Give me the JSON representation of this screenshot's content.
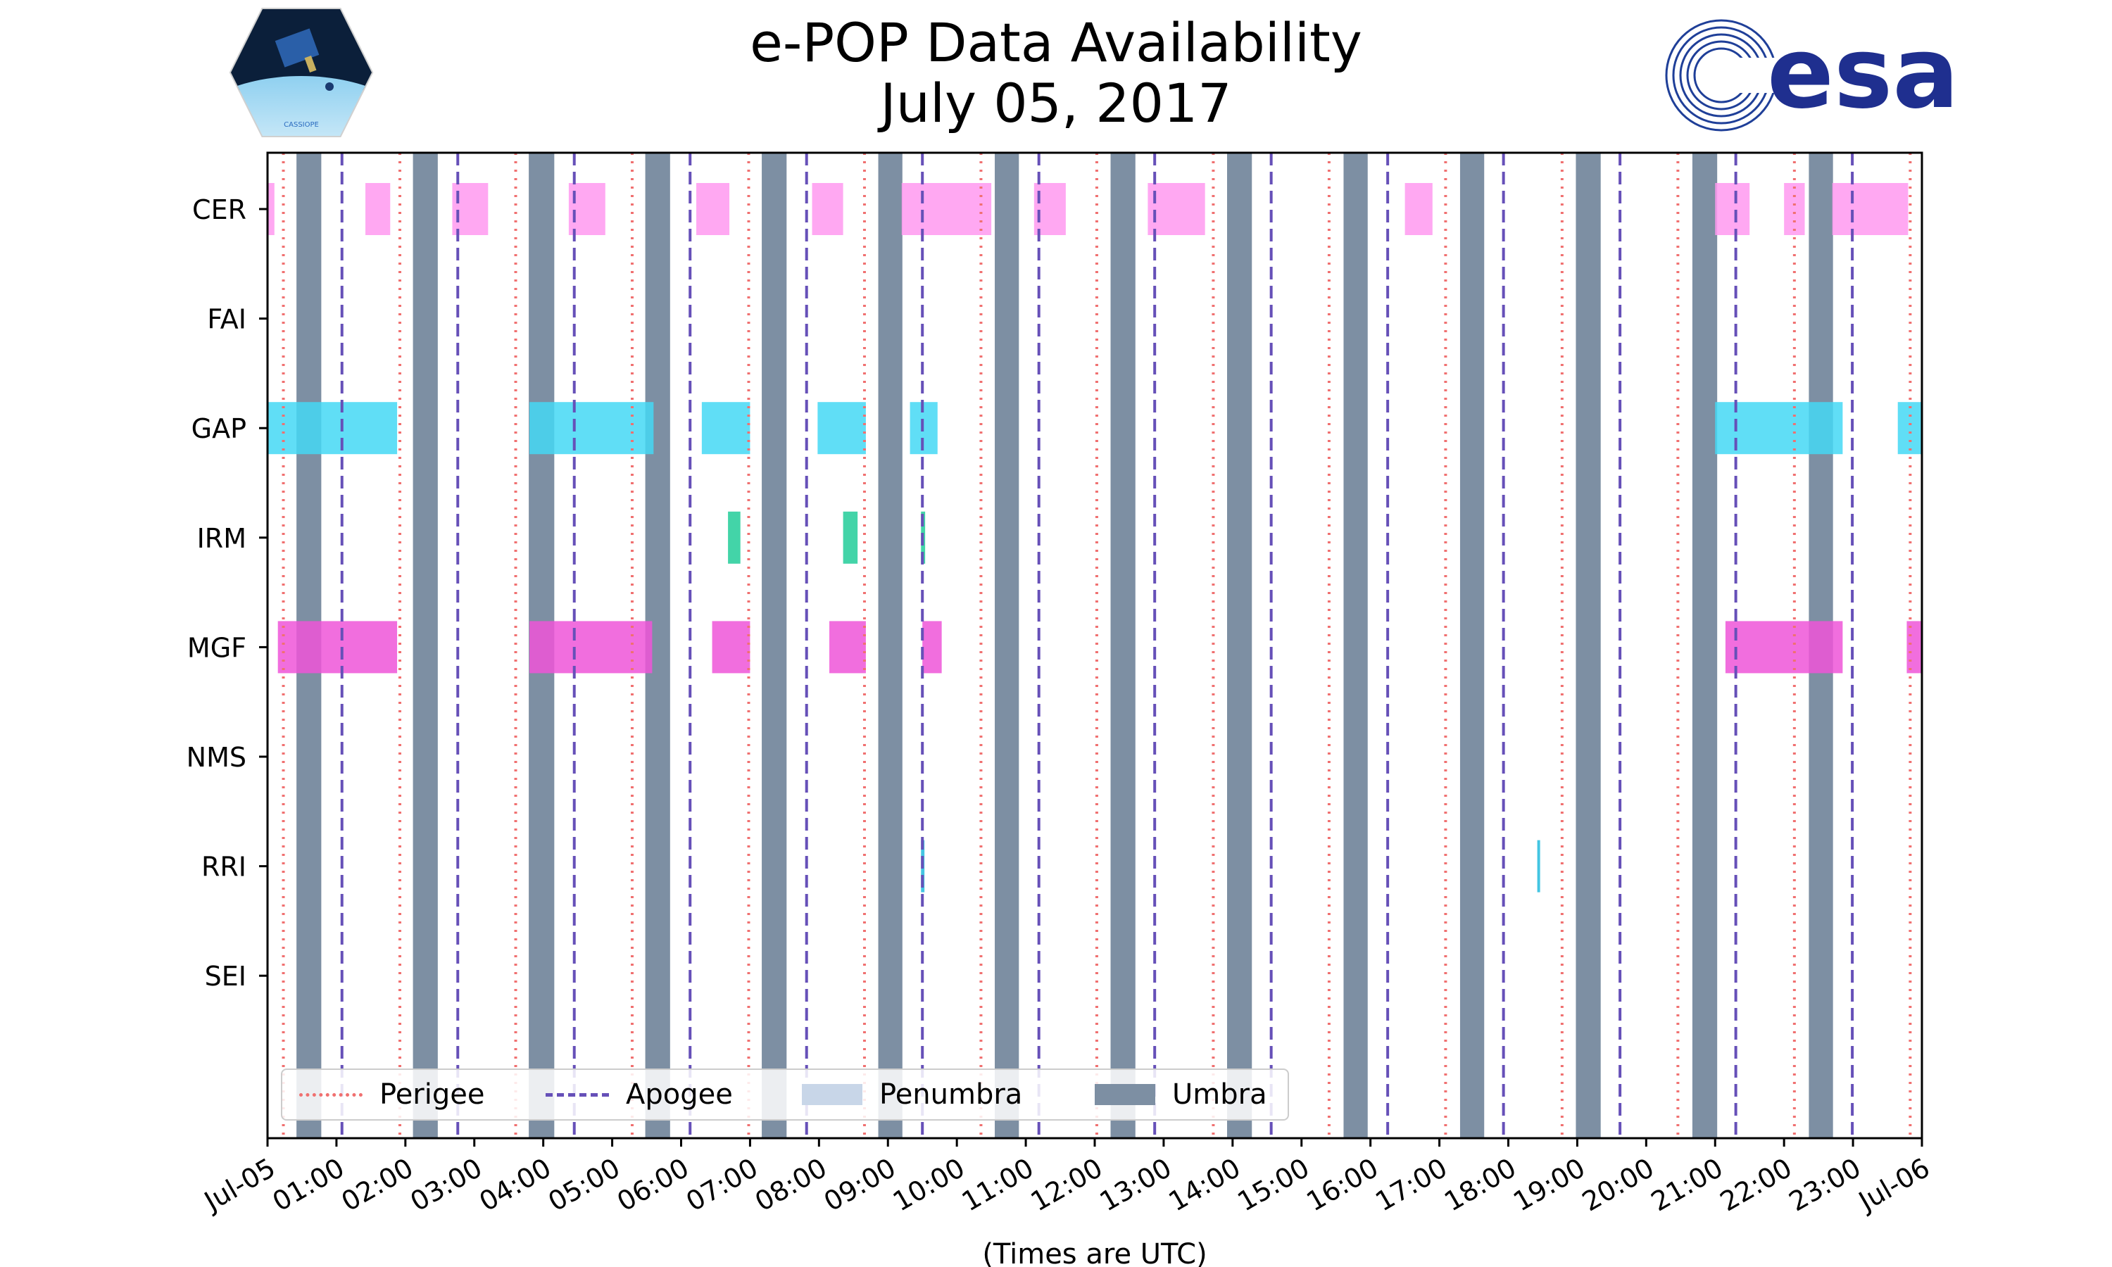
{
  "title": {
    "line1": "e-POP Data Availability",
    "line2": "July 05, 2017"
  },
  "logos": {
    "cassiope_text": "CASSIOPE",
    "esa_text": "esa"
  },
  "chart_data": {
    "type": "timeline",
    "title": "e-POP Data Availability July 05, 2017",
    "xlabel": "(Times are UTC)",
    "x_unit": "hours UTC",
    "xlim": [
      0,
      24
    ],
    "x_ticks": [
      {
        "h": 0,
        "label": "Jul-05"
      },
      {
        "h": 1,
        "label": "01:00"
      },
      {
        "h": 2,
        "label": "02:00"
      },
      {
        "h": 3,
        "label": "03:00"
      },
      {
        "h": 4,
        "label": "04:00"
      },
      {
        "h": 5,
        "label": "05:00"
      },
      {
        "h": 6,
        "label": "06:00"
      },
      {
        "h": 7,
        "label": "07:00"
      },
      {
        "h": 8,
        "label": "08:00"
      },
      {
        "h": 9,
        "label": "09:00"
      },
      {
        "h": 10,
        "label": "10:00"
      },
      {
        "h": 11,
        "label": "11:00"
      },
      {
        "h": 12,
        "label": "12:00"
      },
      {
        "h": 13,
        "label": "13:00"
      },
      {
        "h": 14,
        "label": "14:00"
      },
      {
        "h": 15,
        "label": "15:00"
      },
      {
        "h": 16,
        "label": "16:00"
      },
      {
        "h": 17,
        "label": "17:00"
      },
      {
        "h": 18,
        "label": "18:00"
      },
      {
        "h": 19,
        "label": "19:00"
      },
      {
        "h": 20,
        "label": "20:00"
      },
      {
        "h": 21,
        "label": "21:00"
      },
      {
        "h": 22,
        "label": "22:00"
      },
      {
        "h": 23,
        "label": "23:00"
      },
      {
        "h": 24,
        "label": "Jul-06"
      }
    ],
    "instruments": [
      "CER",
      "FAI",
      "GAP",
      "IRM",
      "MGF",
      "NMS",
      "RRI",
      "SEI"
    ],
    "colors": {
      "CER": "#ff99f0",
      "GAP": "#44d8f5",
      "IRM": "#22cc99",
      "MGF": "#ee55d8",
      "RRI": "#22bbdd",
      "umbra": "#7d8fa3",
      "penumbra": "#c8d6e8",
      "perigee": "#f07070",
      "apogee": "#6650b8"
    },
    "perigee": [
      0.23,
      1.92,
      3.6,
      5.29,
      6.98,
      8.66,
      10.35,
      12.03,
      13.72,
      15.4,
      17.09,
      18.78,
      20.46,
      22.15,
      23.83
    ],
    "apogee": [
      1.08,
      2.76,
      4.45,
      6.13,
      7.82,
      9.5,
      11.19,
      12.87,
      14.56,
      16.25,
      17.93,
      19.62,
      21.3,
      22.99
    ],
    "umbra": [
      [
        0.42,
        0.78
      ],
      [
        2.11,
        2.47
      ],
      [
        3.79,
        4.16
      ],
      [
        5.48,
        5.84
      ],
      [
        7.17,
        7.53
      ],
      [
        8.86,
        9.21
      ],
      [
        10.55,
        10.9
      ],
      [
        12.23,
        12.59
      ],
      [
        13.92,
        14.28
      ],
      [
        15.61,
        15.96
      ],
      [
        17.3,
        17.65
      ],
      [
        18.98,
        19.34
      ],
      [
        20.67,
        21.03
      ],
      [
        22.36,
        22.71
      ]
    ],
    "intervals": {
      "CER": [
        [
          0,
          0.1
        ],
        [
          1.42,
          1.78
        ],
        [
          2.68,
          3.2
        ],
        [
          4.37,
          4.9
        ],
        [
          6.22,
          6.7
        ],
        [
          7.9,
          8.35
        ],
        [
          9.2,
          10.5
        ],
        [
          11.12,
          11.58
        ],
        [
          12.77,
          13.6
        ],
        [
          16.5,
          16.9
        ],
        [
          21.0,
          21.5
        ],
        [
          22.0,
          22.3
        ],
        [
          22.7,
          23.8
        ]
      ],
      "FAI": [],
      "GAP": [
        [
          0,
          1.88
        ],
        [
          3.8,
          5.6
        ],
        [
          6.3,
          7.0
        ],
        [
          7.98,
          8.68
        ],
        [
          9.32,
          9.72
        ],
        [
          21.0,
          22.85
        ],
        [
          23.65,
          24
        ]
      ],
      "IRM": [
        [
          6.68,
          6.86
        ],
        [
          8.35,
          8.56
        ],
        [
          9.48,
          9.54
        ]
      ],
      "MGF": [
        [
          0.15,
          1.88
        ],
        [
          3.8,
          5.58
        ],
        [
          6.45,
          7.0
        ],
        [
          8.15,
          8.68
        ],
        [
          9.5,
          9.78
        ],
        [
          21.15,
          22.85
        ],
        [
          23.78,
          24
        ]
      ],
      "NMS": [],
      "RRI": [
        [
          9.48,
          9.53
        ],
        [
          18.42,
          18.46
        ]
      ],
      "SEI": []
    },
    "legend": {
      "placement": "lower-left",
      "items": [
        "Perigee",
        "Apogee",
        "Penumbra",
        "Umbra"
      ]
    }
  }
}
